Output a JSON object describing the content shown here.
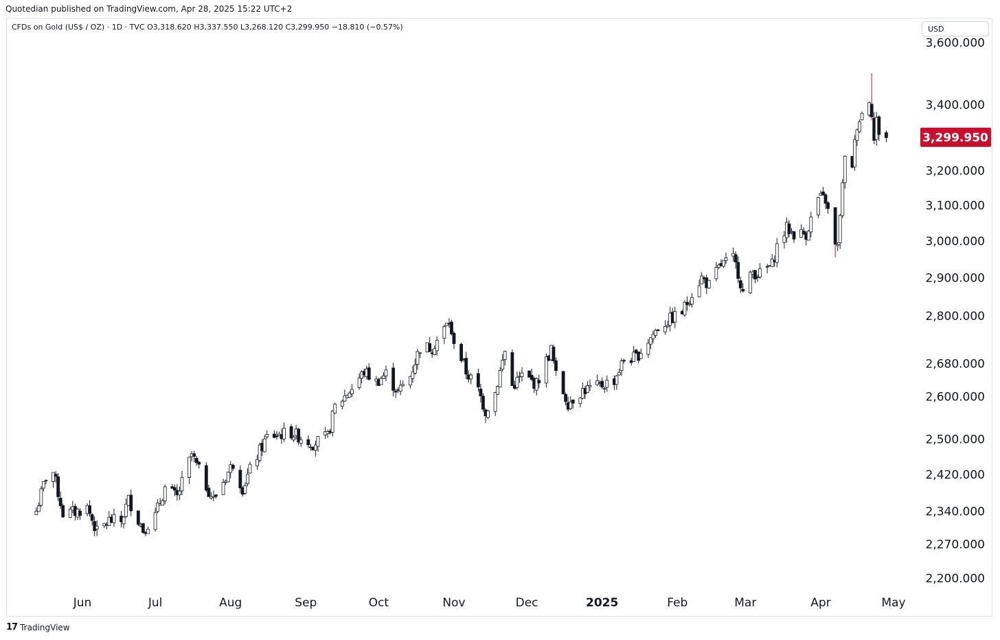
{
  "header": {
    "published": "Quotedian published on TradingView.com, Apr 28, 2025 15:22 UTC+2"
  },
  "symbol_line": "CFDs on Gold (US$ / OZ) · 1D · TVC  O3,318.620  H3,337.550  L3,268.120  C3,299.950  −18.810 (−0.57%)",
  "currency_button": "USD",
  "footer": {
    "brand": "TradingView",
    "mark": "17"
  },
  "colors": {
    "up": "#ffffff",
    "down": "#131722",
    "wick": "#131722",
    "wick_down_red": "#c8102e",
    "last_price_bg": "#c8102e"
  },
  "chart_data": {
    "type": "candlestick",
    "y_scale": "log",
    "ylim": [
      2160,
      3640
    ],
    "y_ticks": [
      {
        "value": 3600,
        "label": "3,600.000"
      },
      {
        "value": 3400,
        "label": "3,400.000"
      },
      {
        "value": 3200,
        "label": "3,200.000"
      },
      {
        "value": 3100,
        "label": "3,100.000"
      },
      {
        "value": 3000,
        "label": "3,000.000"
      },
      {
        "value": 2900,
        "label": "2,900.000"
      },
      {
        "value": 2800,
        "label": "2,800.000"
      },
      {
        "value": 2680,
        "label": "2,680.000"
      },
      {
        "value": 2600,
        "label": "2,600.000"
      },
      {
        "value": 2500,
        "label": "2,500.000"
      },
      {
        "value": 2420,
        "label": "2,420.000"
      },
      {
        "value": 2340,
        "label": "2,340.000"
      },
      {
        "value": 2270,
        "label": "2,270.000"
      },
      {
        "value": 2200,
        "label": "2,200.000"
      }
    ],
    "x_ticks": [
      {
        "date": "2024-06-01",
        "label": "Jun",
        "bold": false
      },
      {
        "date": "2024-07-01",
        "label": "Jul",
        "bold": false
      },
      {
        "date": "2024-08-01",
        "label": "Aug",
        "bold": false
      },
      {
        "date": "2024-09-01",
        "label": "Sep",
        "bold": false
      },
      {
        "date": "2024-10-01",
        "label": "Oct",
        "bold": false
      },
      {
        "date": "2024-11-01",
        "label": "Nov",
        "bold": false
      },
      {
        "date": "2024-12-01",
        "label": "Dec",
        "bold": false
      },
      {
        "date": "2025-01-01",
        "label": "2025",
        "bold": true
      },
      {
        "date": "2025-02-01",
        "label": "Feb",
        "bold": false
      },
      {
        "date": "2025-03-01",
        "label": "Mar",
        "bold": false
      },
      {
        "date": "2025-04-01",
        "label": "Apr",
        "bold": false
      },
      {
        "date": "2025-05-01",
        "label": "May",
        "bold": false
      }
    ],
    "last_price": {
      "value": 3299.95,
      "label": "3,299.950"
    },
    "close_path": [
      [
        "2024-05-13",
        2340
      ],
      [
        "2024-05-17",
        2415
      ],
      [
        "2024-05-20",
        2425
      ],
      [
        "2024-05-22",
        2380
      ],
      [
        "2024-05-24",
        2335
      ],
      [
        "2024-05-29",
        2338
      ],
      [
        "2024-06-03",
        2348
      ],
      [
        "2024-06-07",
        2295
      ],
      [
        "2024-06-12",
        2320
      ],
      [
        "2024-06-17",
        2318
      ],
      [
        "2024-06-20",
        2365
      ],
      [
        "2024-06-26",
        2300
      ],
      [
        "2024-07-01",
        2330
      ],
      [
        "2024-07-05",
        2390
      ],
      [
        "2024-07-10",
        2370
      ],
      [
        "2024-07-16",
        2465
      ],
      [
        "2024-07-18",
        2440
      ],
      [
        "2024-07-22",
        2395
      ],
      [
        "2024-07-25",
        2365
      ],
      [
        "2024-08-02",
        2445
      ],
      [
        "2024-08-06",
        2390
      ],
      [
        "2024-08-09",
        2430
      ],
      [
        "2024-08-16",
        2505
      ],
      [
        "2024-08-20",
        2510
      ],
      [
        "2024-08-26",
        2515
      ],
      [
        "2024-09-04",
        2490
      ],
      [
        "2024-09-10",
        2505
      ],
      [
        "2024-09-13",
        2575
      ],
      [
        "2024-09-20",
        2620
      ],
      [
        "2024-09-25",
        2660
      ],
      [
        "2024-09-30",
        2635
      ],
      [
        "2024-10-04",
        2655
      ],
      [
        "2024-10-09",
        2610
      ],
      [
        "2024-10-14",
        2650
      ],
      [
        "2024-10-18",
        2720
      ],
      [
        "2024-10-23",
        2720
      ],
      [
        "2024-10-30",
        2785
      ],
      [
        "2024-10-31",
        2745
      ],
      [
        "2024-11-01",
        2740
      ],
      [
        "2024-11-06",
        2660
      ],
      [
        "2024-11-11",
        2615
      ],
      [
        "2024-11-14",
        2565
      ],
      [
        "2024-11-18",
        2610
      ],
      [
        "2024-11-22",
        2710
      ],
      [
        "2024-11-25",
        2625
      ],
      [
        "2024-11-29",
        2650
      ],
      [
        "2024-12-05",
        2630
      ],
      [
        "2024-12-11",
        2715
      ],
      [
        "2024-12-13",
        2650
      ],
      [
        "2024-12-18",
        2585
      ],
      [
        "2024-12-24",
        2615
      ],
      [
        "2024-12-31",
        2625
      ],
      [
        "2025-01-06",
        2640
      ],
      [
        "2025-01-10",
        2690
      ],
      [
        "2025-01-15",
        2695
      ],
      [
        "2025-01-21",
        2745
      ],
      [
        "2025-01-24",
        2770
      ],
      [
        "2025-01-30",
        2795
      ],
      [
        "2025-02-03",
        2810
      ],
      [
        "2025-02-07",
        2860
      ],
      [
        "2025-02-11",
        2900
      ],
      [
        "2025-02-14",
        2880
      ],
      [
        "2025-02-19",
        2935
      ],
      [
        "2025-02-24",
        2950
      ],
      [
        "2025-02-26",
        2915
      ],
      [
        "2025-02-28",
        2860
      ],
      [
        "2025-03-04",
        2915
      ],
      [
        "2025-03-07",
        2910
      ],
      [
        "2025-03-12",
        2935
      ],
      [
        "2025-03-14",
        2985
      ],
      [
        "2025-03-18",
        3035
      ],
      [
        "2025-03-21",
        3020
      ],
      [
        "2025-03-26",
        3020
      ],
      [
        "2025-03-31",
        3120
      ],
      [
        "2025-04-03",
        3115
      ],
      [
        "2025-04-07",
        2985
      ],
      [
        "2025-04-08",
        2980
      ],
      [
        "2025-04-09",
        3080
      ],
      [
        "2025-04-11",
        3230
      ],
      [
        "2025-04-14",
        3220
      ],
      [
        "2025-04-16",
        3340
      ],
      [
        "2025-04-21",
        3420
      ],
      [
        "2025-04-22",
        3380
      ],
      [
        "2025-04-23",
        3290
      ],
      [
        "2025-04-24",
        3350
      ],
      [
        "2025-04-25",
        3318
      ],
      [
        "2025-04-28",
        3300
      ]
    ],
    "notable_highs": [
      [
        "2025-04-22",
        3500
      ],
      [
        "2024-10-31",
        2790
      ]
    ],
    "notable_lows": [
      [
        "2025-04-07",
        2955
      ],
      [
        "2024-11-14",
        2537
      ],
      [
        "2024-06-07",
        2287
      ]
    ]
  }
}
